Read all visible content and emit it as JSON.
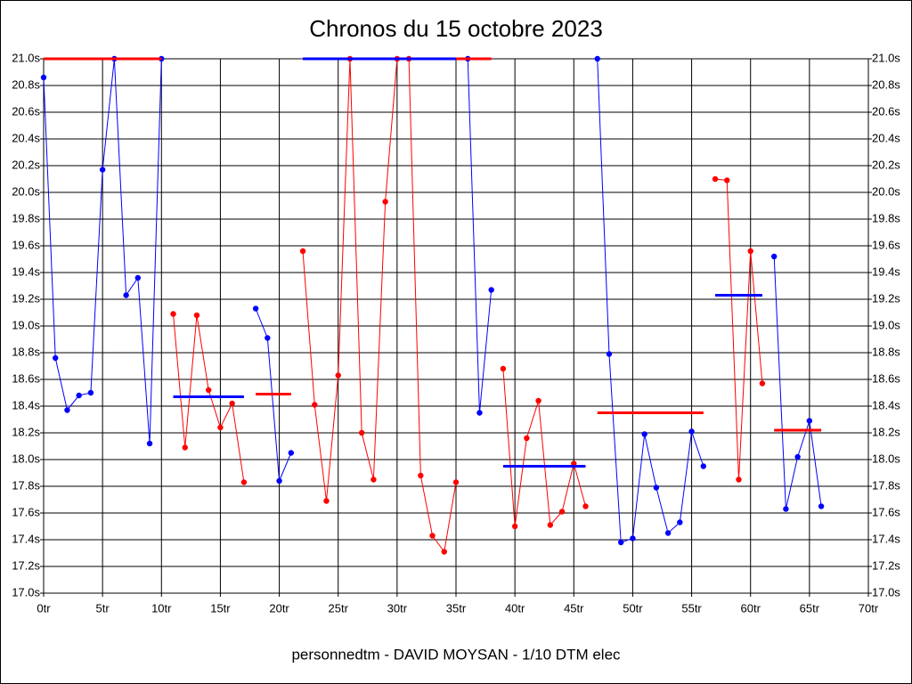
{
  "chart_data": {
    "type": "line",
    "title": "Chronos du 15 octobre 2023",
    "footer": "personnedtm - DAVID MOYSAN - 1/10 DTM elec",
    "grid": true,
    "xlim": [
      0,
      70
    ],
    "ylim": [
      17.0,
      21.0
    ],
    "xticks": [
      {
        "value": 0,
        "label": "0tr"
      },
      {
        "value": 5,
        "label": "5tr"
      },
      {
        "value": 10,
        "label": "10tr"
      },
      {
        "value": 15,
        "label": "15tr"
      },
      {
        "value": 20,
        "label": "20tr"
      },
      {
        "value": 25,
        "label": "25tr"
      },
      {
        "value": 30,
        "label": "30tr"
      },
      {
        "value": 35,
        "label": "35tr"
      },
      {
        "value": 40,
        "label": "40tr"
      },
      {
        "value": 45,
        "label": "45tr"
      },
      {
        "value": 50,
        "label": "50tr"
      },
      {
        "value": 55,
        "label": "55tr"
      },
      {
        "value": 60,
        "label": "60tr"
      },
      {
        "value": 65,
        "label": "65tr"
      },
      {
        "value": 70,
        "label": "70tr"
      }
    ],
    "yticks": [
      {
        "value": 17.0,
        "label": "17.0s"
      },
      {
        "value": 17.2,
        "label": "17.2s"
      },
      {
        "value": 17.4,
        "label": "17.4s"
      },
      {
        "value": 17.6,
        "label": "17.6s"
      },
      {
        "value": 17.8,
        "label": "17.8s"
      },
      {
        "value": 18.0,
        "label": "18.0s"
      },
      {
        "value": 18.2,
        "label": "18.2s"
      },
      {
        "value": 18.4,
        "label": "18.4s"
      },
      {
        "value": 18.6,
        "label": "18.6s"
      },
      {
        "value": 18.8,
        "label": "18.8s"
      },
      {
        "value": 19.0,
        "label": "19.0s"
      },
      {
        "value": 19.2,
        "label": "19.2s"
      },
      {
        "value": 19.4,
        "label": "19.4s"
      },
      {
        "value": 19.6,
        "label": "19.6s"
      },
      {
        "value": 19.8,
        "label": "19.8s"
      },
      {
        "value": 20.0,
        "label": "20.0s"
      },
      {
        "value": 20.2,
        "label": "20.2s"
      },
      {
        "value": 20.4,
        "label": "20.4s"
      },
      {
        "value": 20.6,
        "label": "20.6s"
      },
      {
        "value": 20.8,
        "label": "20.8s"
      },
      {
        "value": 21.0,
        "label": "21.0s"
      }
    ],
    "series": [
      {
        "color": "#0000ff",
        "mean_color": "#ff0000",
        "x": [
          0,
          1,
          2,
          3,
          4,
          5,
          6,
          7,
          8,
          9,
          10
        ],
        "values": [
          20.86,
          18.76,
          18.37,
          18.48,
          18.5,
          20.17,
          21.0,
          19.23,
          19.36,
          18.12,
          21.0
        ],
        "mean": 21.0,
        "mean_x": [
          0,
          10
        ]
      },
      {
        "color": "#ff0000",
        "mean_color": "#0000ff",
        "x": [
          11,
          12,
          13,
          14,
          15,
          16,
          17
        ],
        "values": [
          19.09,
          18.09,
          19.08,
          18.52,
          18.24,
          18.42,
          17.83
        ],
        "mean": 18.47,
        "mean_x": [
          11,
          17
        ]
      },
      {
        "color": "#0000ff",
        "mean_color": "#ff0000",
        "x": [
          18,
          19,
          20,
          21
        ],
        "values": [
          19.13,
          18.91,
          17.84,
          18.05
        ],
        "mean": 18.49,
        "mean_x": [
          18,
          21
        ]
      },
      {
        "color": "#ff0000",
        "mean_color": "#0000ff",
        "x": [
          22,
          23,
          24,
          25,
          26,
          27,
          28,
          29,
          30,
          31,
          32,
          33,
          34,
          35
        ],
        "values": [
          19.56,
          18.41,
          17.69,
          18.63,
          21.0,
          18.2,
          17.85,
          19.93,
          21.0,
          21.0,
          17.88,
          17.43,
          17.31,
          17.83
        ],
        "mean": 21.0,
        "mean_x": [
          22,
          35
        ]
      },
      {
        "color": "#0000ff",
        "mean_color": "#ff0000",
        "x": [
          36,
          37,
          38
        ],
        "values": [
          21.0,
          18.35,
          19.27
        ],
        "mean": 21.0,
        "mean_x": [
          35,
          38
        ]
      },
      {
        "color": "#ff0000",
        "mean_color": "#0000ff",
        "x": [
          39,
          40,
          41,
          42,
          43,
          44,
          45,
          46
        ],
        "values": [
          18.68,
          17.5,
          18.16,
          18.44,
          17.51,
          17.61,
          17.97,
          17.65
        ],
        "mean": 17.95,
        "mean_x": [
          39,
          46
        ]
      },
      {
        "color": "#0000ff",
        "mean_color": "#ff0000",
        "x": [
          47,
          48,
          49,
          50,
          51,
          52,
          53,
          54,
          55,
          56
        ],
        "values": [
          21.0,
          18.79,
          17.38,
          17.41,
          18.19,
          17.79,
          17.45,
          17.53,
          18.21,
          17.95
        ],
        "mean": 18.35,
        "mean_x": [
          47,
          56
        ]
      },
      {
        "color": "#ff0000",
        "mean_color": "#0000ff",
        "x": [
          57,
          58,
          59,
          60,
          61
        ],
        "values": [
          20.1,
          20.09,
          17.85,
          19.56,
          18.57
        ],
        "mean": 19.23,
        "mean_x": [
          57,
          61
        ]
      },
      {
        "color": "#0000ff",
        "mean_color": "#ff0000",
        "x": [
          62,
          63,
          64,
          65,
          66
        ],
        "values": [
          19.52,
          17.63,
          18.02,
          18.29,
          17.65
        ],
        "mean": 18.22,
        "mean_x": [
          62,
          66
        ]
      }
    ]
  }
}
